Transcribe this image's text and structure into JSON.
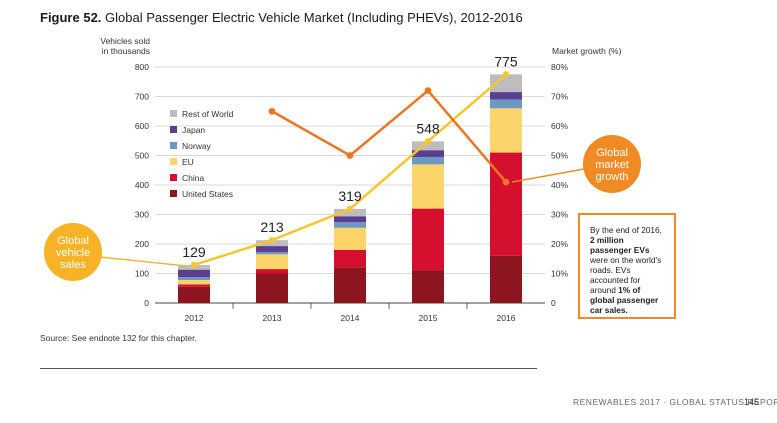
{
  "figure": {
    "label": "Figure 52.",
    "title": "Global Passenger Electric Vehicle Market (Including PHEVs), 2012-2016"
  },
  "source": "Source: See endnote 132 for this chapter.",
  "footer": {
    "report": "RENEWABLES 2017 · GLOBAL STATUS REPORT",
    "page": "145"
  },
  "note": {
    "pre": "By the end of 2016,",
    "bold1": "2 million passenger EVs",
    "mid": "were on the world's roads. EVs accounted for around",
    "bold2": "1% of global passenger car sales."
  },
  "callouts": {
    "left": [
      "Global",
      "vehicle",
      "sales"
    ],
    "right": [
      "Global",
      "market",
      "growth"
    ]
  },
  "colors": {
    "United States": "#8c1520",
    "China": "#d5102f",
    "EU": "#fbd46a",
    "Norway": "#6f97c4",
    "Japan": "#5a3f8f",
    "Rest of World": "#bdbdbd",
    "sales_line": "#f7c531",
    "growth_line": "#ee7424",
    "callout_left": "#f7b325",
    "callout_right": "#f08a24"
  },
  "chart_data": {
    "type": "bar",
    "stacked": true,
    "categories": [
      "2012",
      "2013",
      "2014",
      "2015",
      "2016"
    ],
    "ylabel_left": [
      "Vehicles sold",
      "in thousands"
    ],
    "ylabel_right": "Market growth (%)",
    "ylim_left": [
      0,
      800
    ],
    "ylim_right": [
      0,
      80
    ],
    "yticks_left": [
      "0",
      "100",
      "200",
      "300",
      "400",
      "500",
      "600",
      "700",
      "800"
    ],
    "yticks_right": [
      "0",
      "10%",
      "20%",
      "30%",
      "40%",
      "50%",
      "60%",
      "70%",
      "80%"
    ],
    "series": [
      {
        "name": "United States",
        "values": [
          55,
          100,
          120,
          110,
          160
        ]
      },
      {
        "name": "China",
        "values": [
          8,
          15,
          60,
          210,
          350
        ]
      },
      {
        "name": "EU",
        "values": [
          15,
          50,
          75,
          150,
          150
        ]
      },
      {
        "name": "Norway",
        "values": [
          10,
          8,
          19,
          25,
          30
        ]
      },
      {
        "name": "Japan",
        "values": [
          25,
          20,
          20,
          23,
          25
        ]
      },
      {
        "name": "Rest of World",
        "values": [
          16,
          20,
          25,
          30,
          60
        ]
      }
    ],
    "totals": [
      129,
      213,
      319,
      548,
      775
    ],
    "growth": {
      "name": "Market growth (%)",
      "values": [
        null,
        65,
        50,
        72,
        41
      ]
    },
    "legend": [
      "Rest of World",
      "Japan",
      "Norway",
      "EU",
      "China",
      "United States"
    ],
    "legend_position": "upper-left"
  }
}
